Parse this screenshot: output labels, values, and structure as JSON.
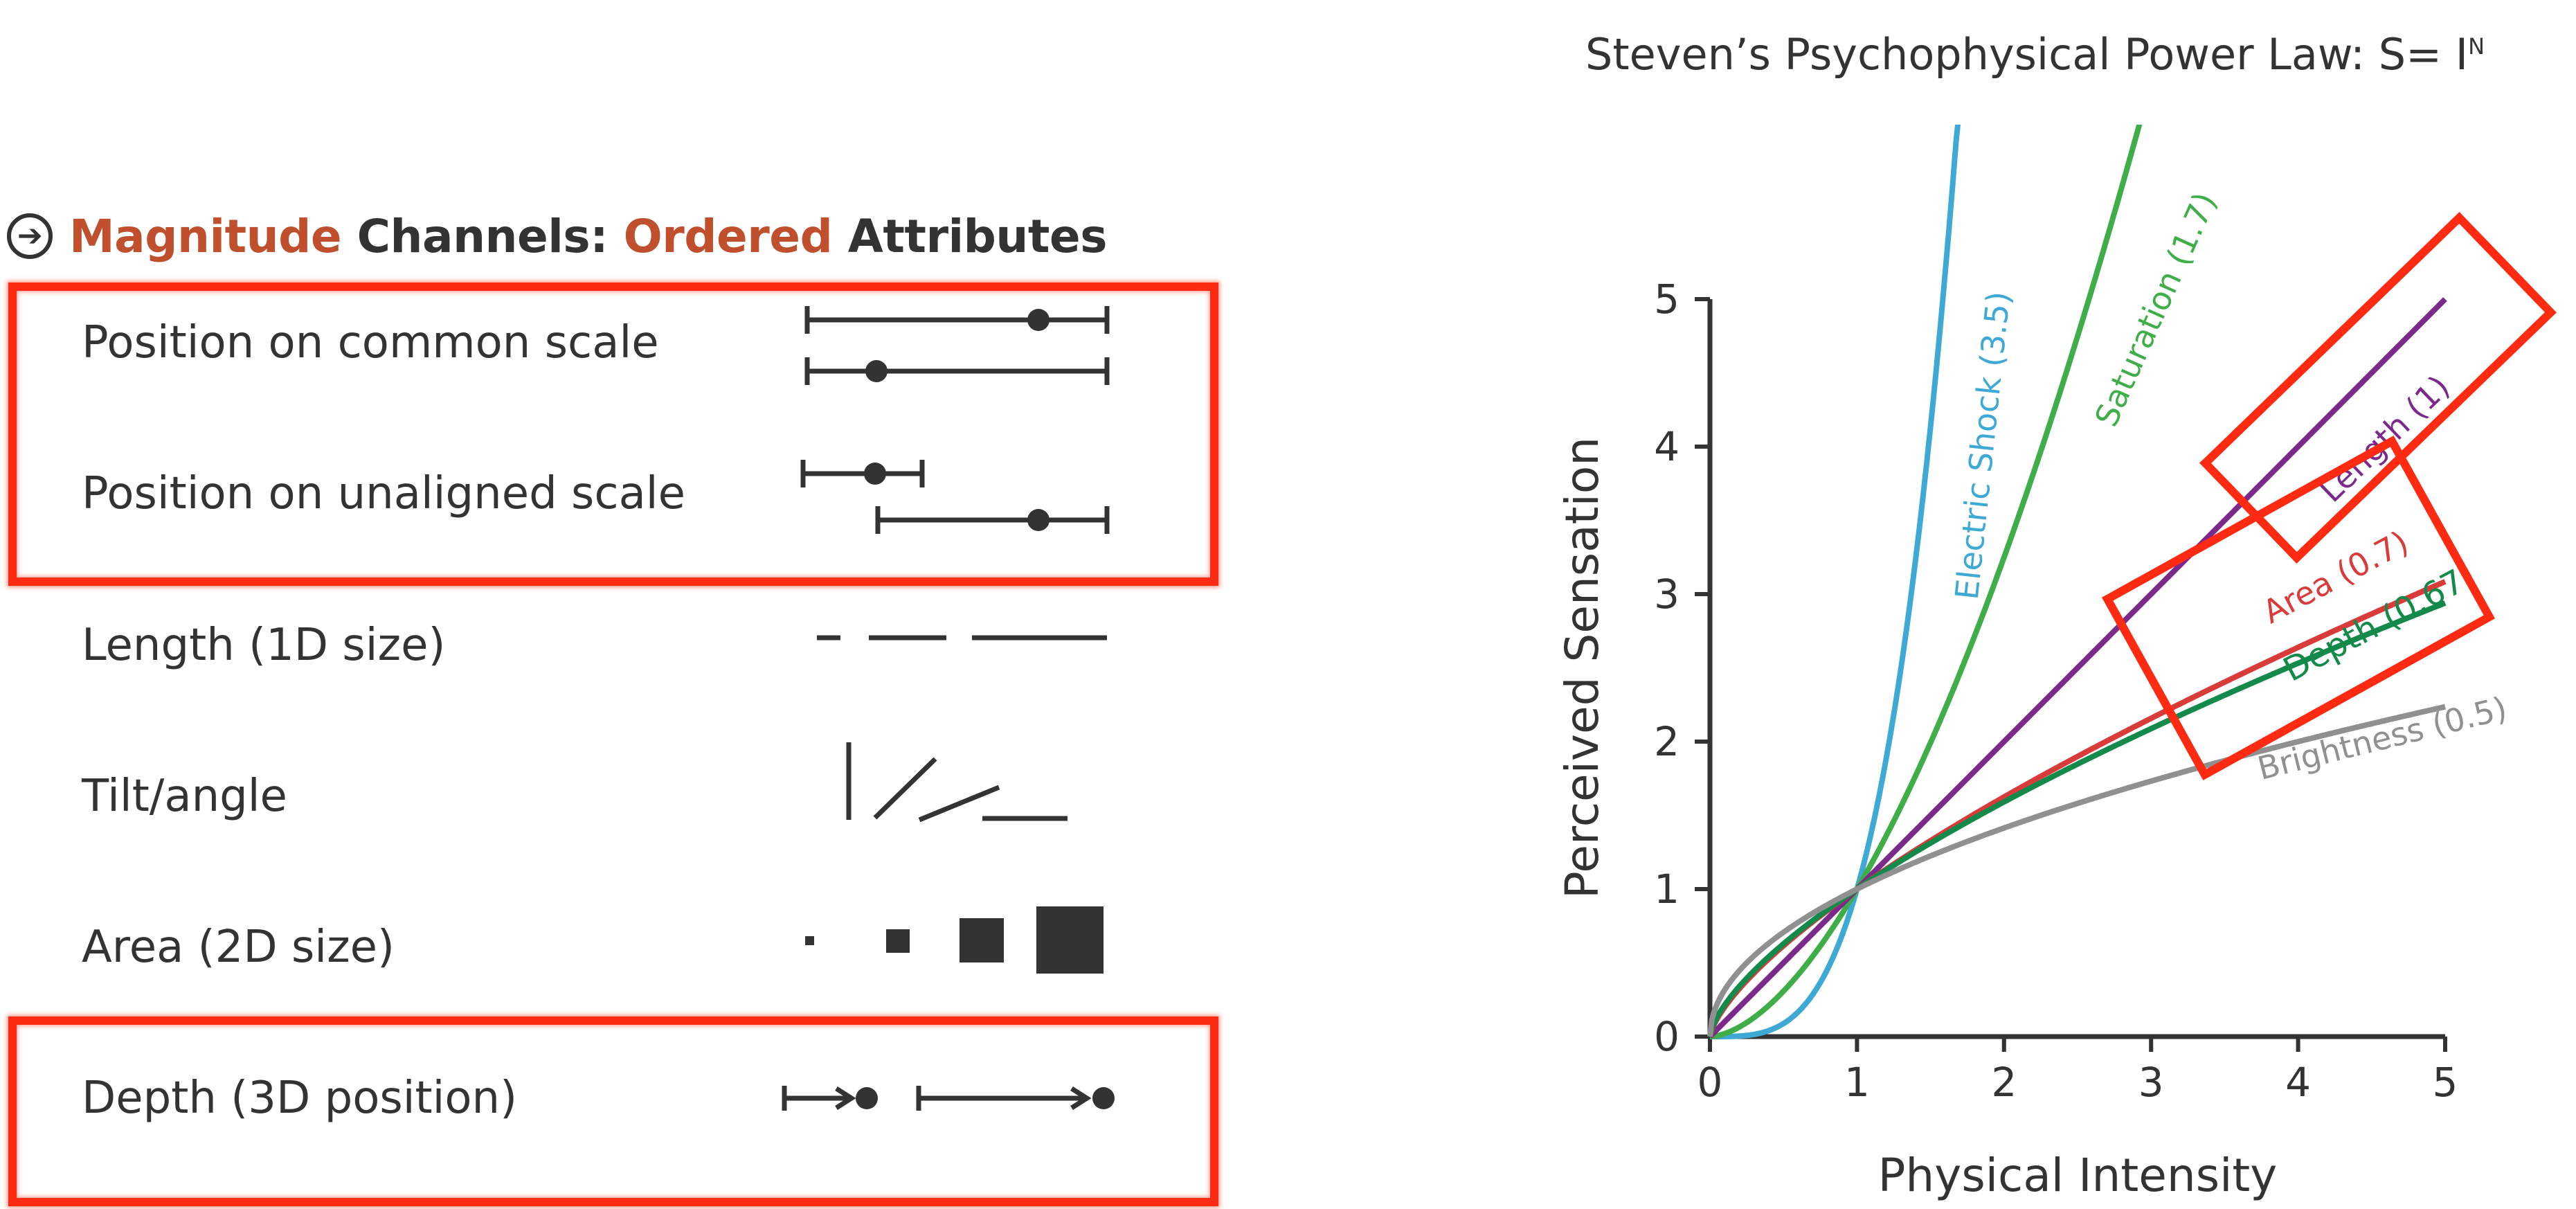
{
  "left": {
    "heading": {
      "icon": "arrow-right-circle-icon",
      "word1": "Magnitude",
      "word2": "Channels:",
      "word3": "Ordered",
      "word4": "Attributes"
    },
    "channels": [
      {
        "label": "Position on common scale"
      },
      {
        "label": "Position on unaligned scale"
      },
      {
        "label": "Length (1D size)"
      },
      {
        "label": "Tilt/angle"
      },
      {
        "label": "Area (2D size)"
      },
      {
        "label": "Depth (3D position)"
      }
    ],
    "highlight_color": "#ff2a12",
    "accent_color": "#c0502d"
  },
  "chart_data": {
    "type": "line",
    "title": "Steven’s Psychophysical Power Law: S= I",
    "title_superscript": "N",
    "xlabel": "Physical Intensity",
    "ylabel": "Perceived Sensation",
    "xlim": [
      0,
      5
    ],
    "ylim": [
      0,
      5
    ],
    "xticks": [
      0,
      1,
      2,
      3,
      4,
      5
    ],
    "yticks": [
      0,
      1,
      2,
      3,
      4,
      5
    ],
    "grid": false,
    "series": [
      {
        "name": "Electric Shock (3.5)",
        "exponent": 3.5,
        "color": "#3fa9d5"
      },
      {
        "name": "Saturation (1.7)",
        "exponent": 1.7,
        "color": "#3fae49"
      },
      {
        "name": "Length (1)",
        "exponent": 1.0,
        "color": "#7b2a8c"
      },
      {
        "name": "Area (0.7)",
        "exponent": 0.7,
        "color": "#d93a3a"
      },
      {
        "name": "Depth (0.67)",
        "exponent": 0.67,
        "color": "#13894a"
      },
      {
        "name": "Brightness (0.5)",
        "exponent": 0.5,
        "color": "#909090"
      }
    ]
  }
}
